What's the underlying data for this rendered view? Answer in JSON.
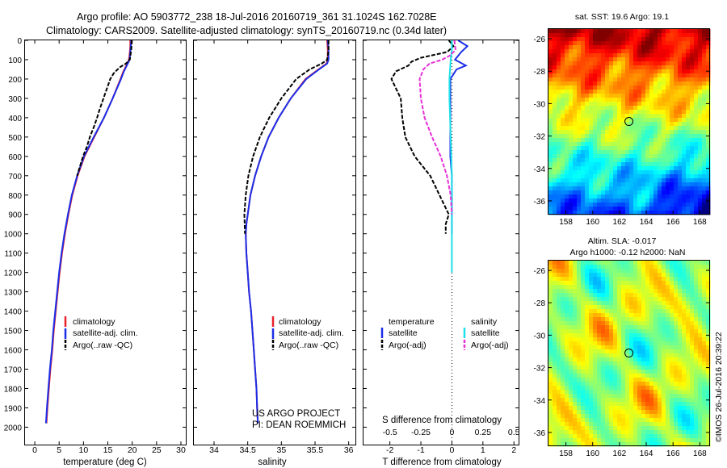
{
  "header": {
    "line1": "Argo profile: AO 5903772_238 18-Jul-2016 20160719_361 31.1024S 162.7028E",
    "line2": "Climatology: CARS2009. Satellite-adjusted climatology: synTS_20160719.nc (0.34d later)"
  },
  "credits": {
    "project": "US ARGO PROJECT",
    "pi": "PI: DEAN ROEMMICH",
    "timestamp": "©IMOS 26-Jul-2016 20:39:22"
  },
  "depth_ticks": [
    "0",
    "100",
    "200",
    "300",
    "400",
    "500",
    "600",
    "700",
    "800",
    "900",
    "1000",
    "1100",
    "1200",
    "1300",
    "1400",
    "1500",
    "1600",
    "1700",
    "1800",
    "1900",
    "2000"
  ],
  "colors": {
    "climatology": "#e8202a",
    "satellite": "#1b2ee8",
    "argo": "#000000",
    "sal_satellite": "#1ee0ea",
    "sal_argo": "#e830d8"
  },
  "legends": {
    "temp": [
      "climatology",
      "satellite-adj. clim.",
      "Argo(..raw -QC)"
    ],
    "sal": [
      "climatology",
      "satellite-adj. clim.",
      "Argo(..raw -QC)"
    ],
    "diff_temp_head": "temperature",
    "diff_sal_head": "salinity",
    "diff_temp_items": [
      "satellite",
      "Argo(-adj)"
    ],
    "diff_sal_items": [
      "satellite",
      "Argo(-adj)"
    ]
  },
  "chart_data": [
    {
      "type": "line",
      "panel": "temperature",
      "xlabel": "temperature (deg C)",
      "x_ticks": [
        "0",
        "5",
        "10",
        "15",
        "20",
        "25",
        "30"
      ],
      "xlim": [
        -2,
        31
      ],
      "ylim": [
        0,
        2090
      ],
      "y_reversed": true,
      "grid": false,
      "legend": "bottom-center",
      "series": [
        {
          "name": "climatology",
          "style": "solid",
          "depth": [
            0,
            30,
            60,
            90,
            110,
            130,
            160,
            200,
            300,
            400,
            500,
            600,
            700,
            800,
            900,
            1000,
            1100,
            1200,
            1300,
            1400,
            1500,
            1600,
            1700,
            1800,
            1900,
            1980
          ],
          "values": [
            19.6,
            19.6,
            19.5,
            19.4,
            19.2,
            18.8,
            18.2,
            17.6,
            16.0,
            14.2,
            12.2,
            10.2,
            8.8,
            7.7,
            6.9,
            6.2,
            5.6,
            5.1,
            4.7,
            4.3,
            3.9,
            3.6,
            3.2,
            2.9,
            2.6,
            2.4
          ]
        },
        {
          "name": "satellite-adj. clim.",
          "style": "solid",
          "depth": [
            0,
            30,
            60,
            90,
            110,
            130,
            160,
            200,
            300,
            400,
            500,
            600,
            700,
            800,
            900,
            1000,
            1100,
            1200,
            1300,
            1400,
            1500,
            1600,
            1700,
            1800,
            1900,
            1980
          ],
          "values": [
            19.8,
            19.7,
            19.6,
            19.5,
            19.3,
            18.9,
            18.3,
            17.7,
            16.0,
            14.2,
            12.1,
            10.1,
            8.7,
            7.6,
            6.8,
            6.1,
            5.5,
            5.0,
            4.6,
            4.2,
            3.8,
            3.5,
            3.1,
            2.8,
            2.5,
            2.3
          ]
        },
        {
          "name": "Argo(..raw -QC)",
          "style": "dash",
          "depth": [
            0,
            50,
            100,
            120,
            140,
            170,
            200,
            250,
            300,
            350,
            400,
            450,
            500,
            550,
            600,
            650,
            700
          ],
          "values": [
            19.9,
            19.8,
            19.5,
            18.7,
            17.4,
            16.2,
            15.5,
            14.8,
            14.1,
            13.4,
            12.8,
            12.1,
            11.3,
            10.7,
            9.9,
            9.3,
            8.7
          ]
        }
      ]
    },
    {
      "type": "line",
      "panel": "salinity",
      "xlabel": "salinity",
      "x_ticks": [
        "34",
        "34.5",
        "35",
        "35.5",
        "36"
      ],
      "xlim": [
        33.7,
        36.1
      ],
      "ylim": [
        0,
        2090
      ],
      "y_reversed": true,
      "grid": false,
      "legend": "bottom-center",
      "series": [
        {
          "name": "climatology",
          "style": "solid",
          "depth": [
            0,
            50,
            100,
            120,
            150,
            200,
            300,
            400,
            500,
            600,
            700,
            800,
            900,
            950,
            1000,
            1100,
            1200,
            1300,
            1400,
            1500,
            1600,
            1700,
            1800,
            1900,
            1980
          ],
          "values": [
            35.68,
            35.69,
            35.69,
            35.67,
            35.55,
            35.36,
            35.14,
            34.96,
            34.81,
            34.7,
            34.61,
            34.54,
            34.5,
            34.48,
            34.47,
            34.48,
            34.5,
            34.52,
            34.55,
            34.57,
            34.59,
            34.61,
            34.63,
            34.64,
            34.65
          ]
        },
        {
          "name": "satellite-adj. clim.",
          "style": "solid",
          "depth": [
            0,
            50,
            100,
            120,
            150,
            200,
            300,
            400,
            500,
            600,
            700,
            800,
            900,
            950,
            1000,
            1100,
            1200,
            1300,
            1400,
            1500,
            1600,
            1700,
            1800,
            1900,
            1980
          ],
          "values": [
            35.69,
            35.7,
            35.7,
            35.68,
            35.56,
            35.37,
            35.14,
            34.96,
            34.81,
            34.7,
            34.61,
            34.54,
            34.5,
            34.48,
            34.47,
            34.48,
            34.5,
            34.52,
            34.55,
            34.57,
            34.59,
            34.61,
            34.63,
            34.64,
            34.65
          ]
        },
        {
          "name": "Argo(..raw -QC)",
          "style": "dash",
          "depth": [
            0,
            50,
            100,
            120,
            150,
            200,
            300,
            400,
            500,
            600,
            700,
            800,
            900,
            1000
          ],
          "values": [
            35.7,
            35.7,
            35.68,
            35.6,
            35.42,
            35.22,
            35.0,
            34.82,
            34.68,
            34.58,
            34.51,
            34.47,
            34.45,
            34.46
          ]
        }
      ]
    },
    {
      "type": "line",
      "panel": "difference",
      "xlabel_bottom": "T difference from climatology",
      "xlabel_top": "S difference from climatology",
      "x_ticks_T": [
        "-2",
        "-1",
        "0",
        "1",
        "2"
      ],
      "x_ticks_S": [
        "-0.5",
        "-0.25",
        "0",
        "0.25",
        "0.5"
      ],
      "xlim_T": [
        -2.85,
        2.15
      ],
      "ylim": [
        0,
        2090
      ],
      "y_reversed": true,
      "grid": false,
      "zero_line": "dotted",
      "legend": "bottom-center",
      "series": [
        {
          "name": "temperature satellite",
          "style": "solid",
          "unit": "T",
          "depth": [
            0,
            30,
            60,
            100,
            130,
            150,
            200,
            300,
            400,
            500,
            600,
            700,
            800,
            900,
            1000
          ],
          "values": [
            0.2,
            0.5,
            0.3,
            0.1,
            0.45,
            0.15,
            -0.05,
            -0.05,
            -0.05,
            -0.05,
            -0.05,
            0.0,
            0.0,
            0.0,
            0.0
          ]
        },
        {
          "name": "temperature Argo(-adj)",
          "style": "dash",
          "unit": "T",
          "depth": [
            0,
            30,
            60,
            90,
            110,
            130,
            160,
            200,
            300,
            400,
            500,
            600,
            700,
            800,
            900,
            950,
            1000
          ],
          "values": [
            -0.1,
            0.05,
            -0.15,
            -1.0,
            -1.3,
            -1.4,
            -1.8,
            -1.95,
            -1.65,
            -1.6,
            -1.5,
            -1.2,
            -0.7,
            -0.4,
            -0.1,
            -0.2,
            -0.2
          ]
        },
        {
          "name": "salinity satellite",
          "style": "solid",
          "unit": "S",
          "depth": [
            0,
            50,
            100,
            200,
            300,
            500,
            700,
            900,
            1000,
            1200
          ],
          "values": [
            0.0,
            0.0,
            -0.01,
            -0.02,
            -0.02,
            -0.01,
            0.0,
            0.0,
            0.0,
            0.0
          ]
        },
        {
          "name": "salinity Argo(-adj)",
          "style": "dash",
          "unit": "S",
          "depth": [
            0,
            50,
            80,
            100,
            120,
            150,
            200,
            300,
            400,
            500,
            600,
            700,
            800,
            900
          ],
          "values": [
            0.02,
            0.03,
            -0.02,
            -0.08,
            -0.18,
            -0.23,
            -0.26,
            -0.25,
            -0.22,
            -0.16,
            -0.09,
            -0.04,
            -0.01,
            0.0
          ]
        }
      ]
    },
    {
      "type": "heatmap",
      "panel": "SST map",
      "title": "sat. SST: 19.6 Argo: 19.1",
      "x_ticks": [
        "158",
        "160",
        "162",
        "164",
        "166",
        "168"
      ],
      "y_ticks": [
        "-26",
        "-28",
        "-30",
        "-32",
        "-34",
        "-36"
      ],
      "xlim": [
        156.7,
        168.7
      ],
      "ylim": [
        -36.8,
        -25.4
      ],
      "marker": {
        "lon": 162.7028,
        "lat": -31.1024
      },
      "colorscale": "jet"
    },
    {
      "type": "heatmap",
      "panel": "SLA map",
      "title1": "Altim. SLA: -0.017",
      "title2": "Argo h1000: -0.12 h2000: NaN",
      "x_ticks": [
        "158",
        "160",
        "162",
        "164",
        "166",
        "168"
      ],
      "y_ticks": [
        "-26",
        "-28",
        "-30",
        "-32",
        "-34",
        "-36"
      ],
      "xlim": [
        156.7,
        168.7
      ],
      "ylim": [
        -36.8,
        -25.4
      ],
      "marker": {
        "lon": 162.7028,
        "lat": -31.1024
      },
      "colorscale": "jet"
    }
  ]
}
